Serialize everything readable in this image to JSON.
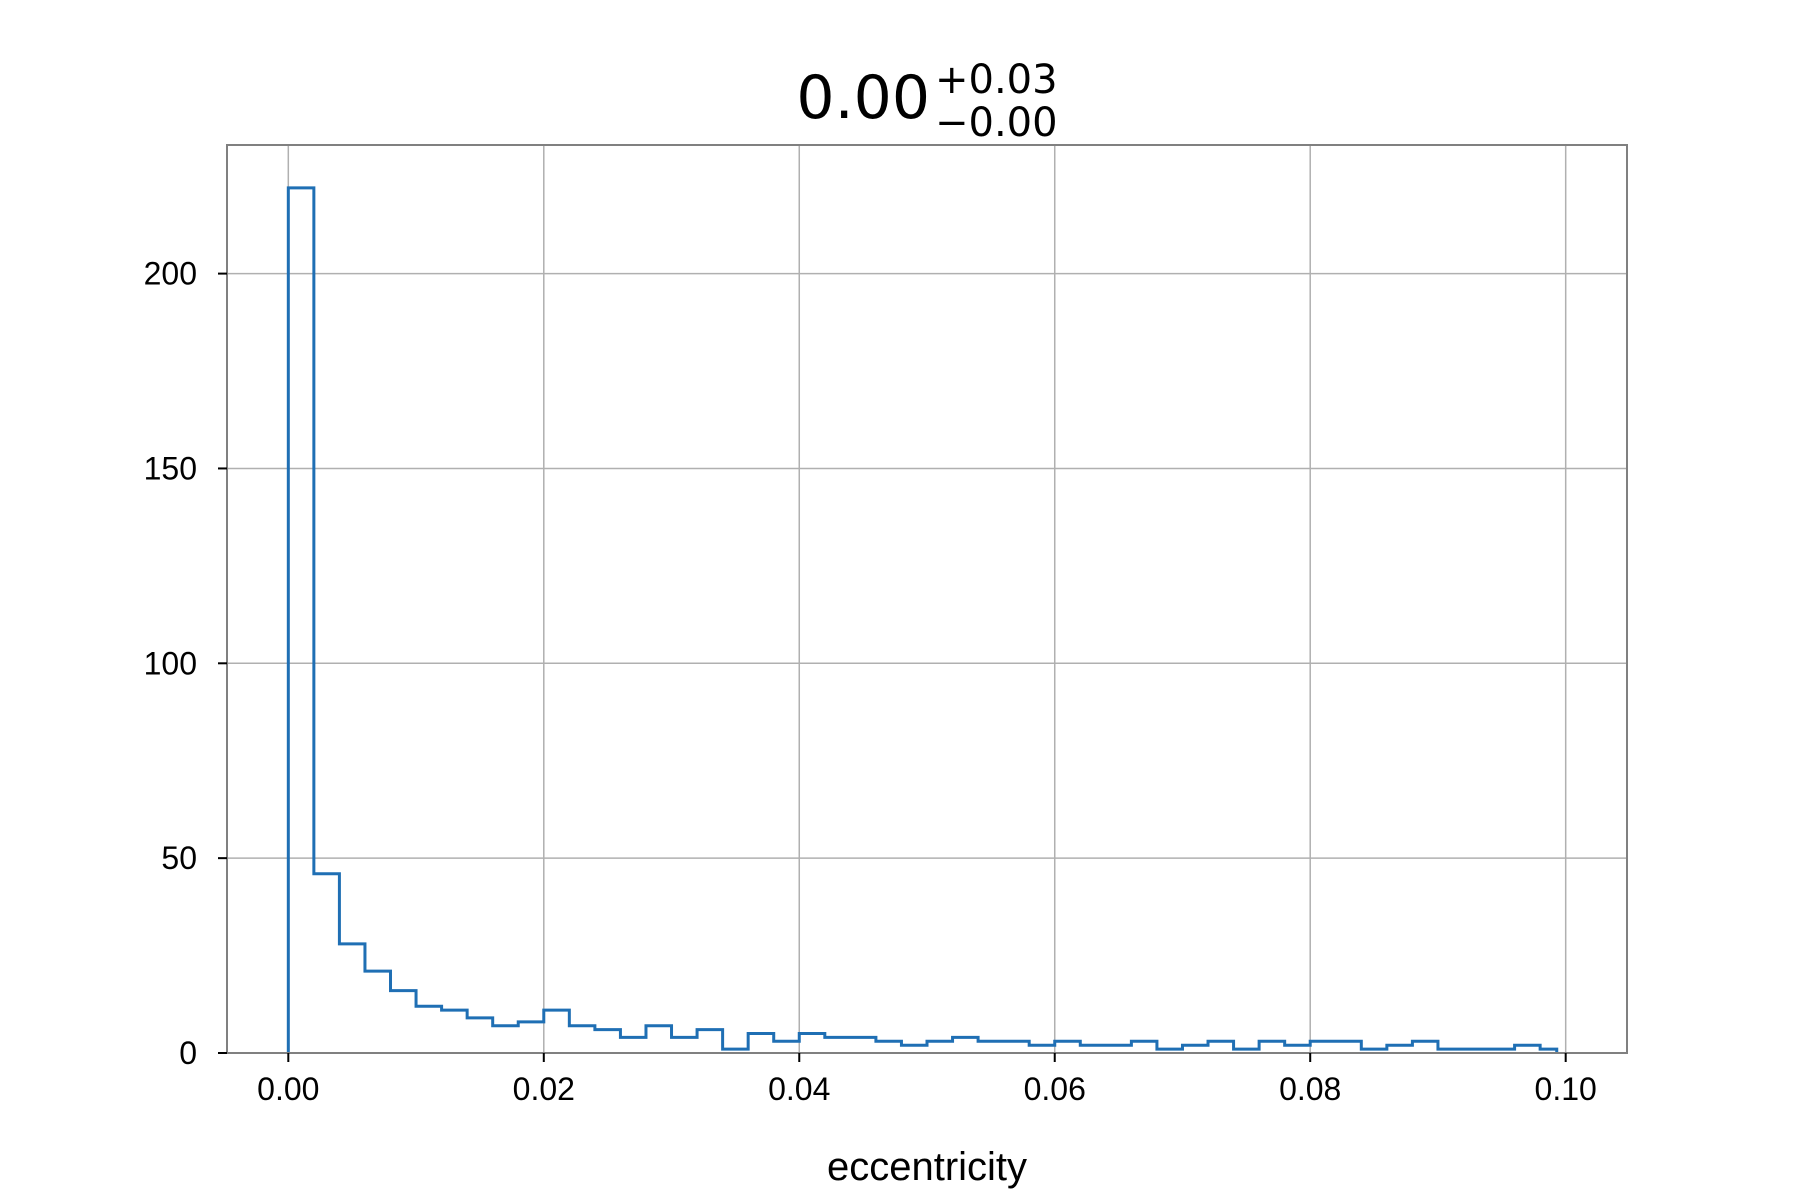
{
  "chart_data": {
    "type": "histogram",
    "title": {
      "base": "0.00",
      "upper": "+0.03",
      "lower": "−0.00"
    },
    "xlabel": "eccentricity",
    "ylabel": "",
    "xlim": [
      -0.0048,
      0.1048
    ],
    "ylim": [
      0,
      233
    ],
    "xticks": [
      0.0,
      0.02,
      0.04,
      0.06,
      0.08,
      0.1
    ],
    "xtick_labels": [
      "0.00",
      "0.02",
      "0.04",
      "0.06",
      "0.08",
      "0.10"
    ],
    "yticks": [
      0,
      50,
      100,
      150,
      200
    ],
    "ytick_labels": [
      "0",
      "50",
      "100",
      "150",
      "200"
    ],
    "grid": true,
    "series": [
      {
        "bin_edges": [
          0.0,
          0.002,
          0.004,
          0.006,
          0.008,
          0.01,
          0.012,
          0.014,
          0.016,
          0.018,
          0.02,
          0.022,
          0.024,
          0.026,
          0.028,
          0.03,
          0.032,
          0.034,
          0.036,
          0.038,
          0.04,
          0.042,
          0.044,
          0.046,
          0.048,
          0.05,
          0.052,
          0.054,
          0.056,
          0.058,
          0.06,
          0.062,
          0.064,
          0.066,
          0.068,
          0.07,
          0.072,
          0.074,
          0.076,
          0.078,
          0.08,
          0.082,
          0.084,
          0.086,
          0.088,
          0.09,
          0.092,
          0.094,
          0.096,
          0.098,
          0.0993
        ],
        "counts": [
          222,
          46,
          28,
          21,
          16,
          12,
          11,
          9,
          7,
          8,
          11,
          7,
          6,
          4,
          7,
          4,
          6,
          1,
          5,
          3,
          5,
          4,
          4,
          3,
          2,
          3,
          4,
          3,
          3,
          2,
          3,
          2,
          2,
          3,
          1,
          2,
          3,
          1,
          3,
          2,
          3,
          3,
          1,
          2,
          3,
          1,
          1,
          1,
          2,
          1
        ],
        "color": "#1f6fb4"
      }
    ],
    "colors": {
      "line": "#1f6fb4",
      "grid": "#b0b0b0",
      "frame": "#808080",
      "text": "#000000"
    }
  }
}
